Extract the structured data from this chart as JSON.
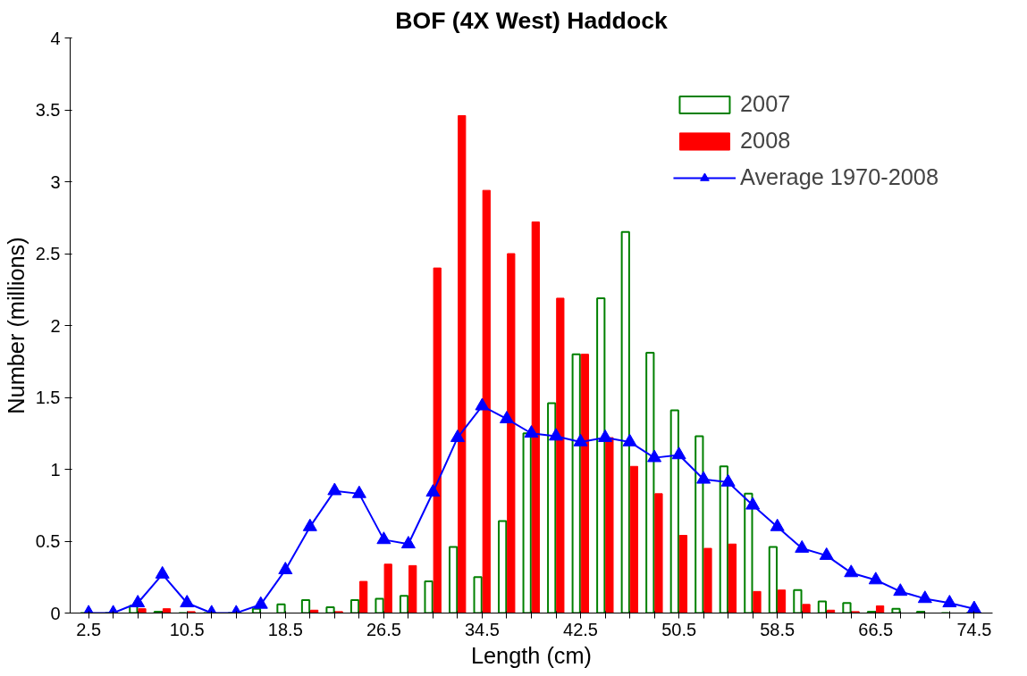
{
  "chart_data": {
    "type": "bar",
    "title": "BOF (4X West) Haddock",
    "xlabel": "Length (cm)",
    "ylabel": "Number (millions)",
    "categories": [
      "2.5",
      null,
      null,
      null,
      "10.5",
      null,
      null,
      null,
      "18.5",
      null,
      null,
      null,
      "26.5",
      null,
      null,
      null,
      "34.5",
      null,
      null,
      null,
      "42.5",
      null,
      null,
      null,
      "50.5",
      null,
      null,
      null,
      "58.5",
      null,
      null,
      null,
      "66.5",
      null,
      null,
      null,
      "74.5"
    ],
    "series": [
      {
        "name": "2007",
        "color": "#008000",
        "values": [
          0,
          0,
          0.05,
          0.01,
          0,
          0,
          0,
          0.03,
          0.06,
          0.09,
          0.04,
          0.09,
          0.1,
          0.12,
          0.22,
          0.46,
          0.25,
          0.64,
          1.25,
          1.46,
          1.8,
          2.19,
          2.65,
          1.81,
          1.41,
          1.23,
          1.02,
          0.83,
          0.46,
          0.16,
          0.08,
          0.07,
          0.01,
          0.03,
          0.01,
          0,
          0
        ]
      },
      {
        "name": "2008",
        "color": "#ff0000",
        "values": [
          0,
          0,
          0.03,
          0.03,
          0.01,
          0,
          0,
          0,
          0,
          0.02,
          0.01,
          0.22,
          0.34,
          0.33,
          2.4,
          3.46,
          2.94,
          2.5,
          2.72,
          2.19,
          1.8,
          1.22,
          1.02,
          0.83,
          0.54,
          0.45,
          0.48,
          0.15,
          0.16,
          0.06,
          0.02,
          0.01,
          0.05,
          0,
          0,
          0,
          0
        ]
      },
      {
        "name": "Average 1970-2008",
        "type": "line",
        "color": "#0000ff",
        "marker": "triangle",
        "values": [
          0,
          0,
          0.07,
          0.27,
          0.07,
          0,
          0,
          0.06,
          0.3,
          0.6,
          0.85,
          0.83,
          0.51,
          0.48,
          0.84,
          1.22,
          1.44,
          1.35,
          1.25,
          1.23,
          1.19,
          1.22,
          1.19,
          1.08,
          1.1,
          0.93,
          0.91,
          0.75,
          0.6,
          0.45,
          0.4,
          0.28,
          0.23,
          0.15,
          0.1,
          0.07,
          0.03
        ]
      }
    ],
    "ylim": [
      0,
      4
    ],
    "yticks": [
      0,
      0.5,
      1,
      1.5,
      2,
      2.5,
      3,
      3.5,
      4
    ],
    "grid": false,
    "legend": "top right"
  }
}
